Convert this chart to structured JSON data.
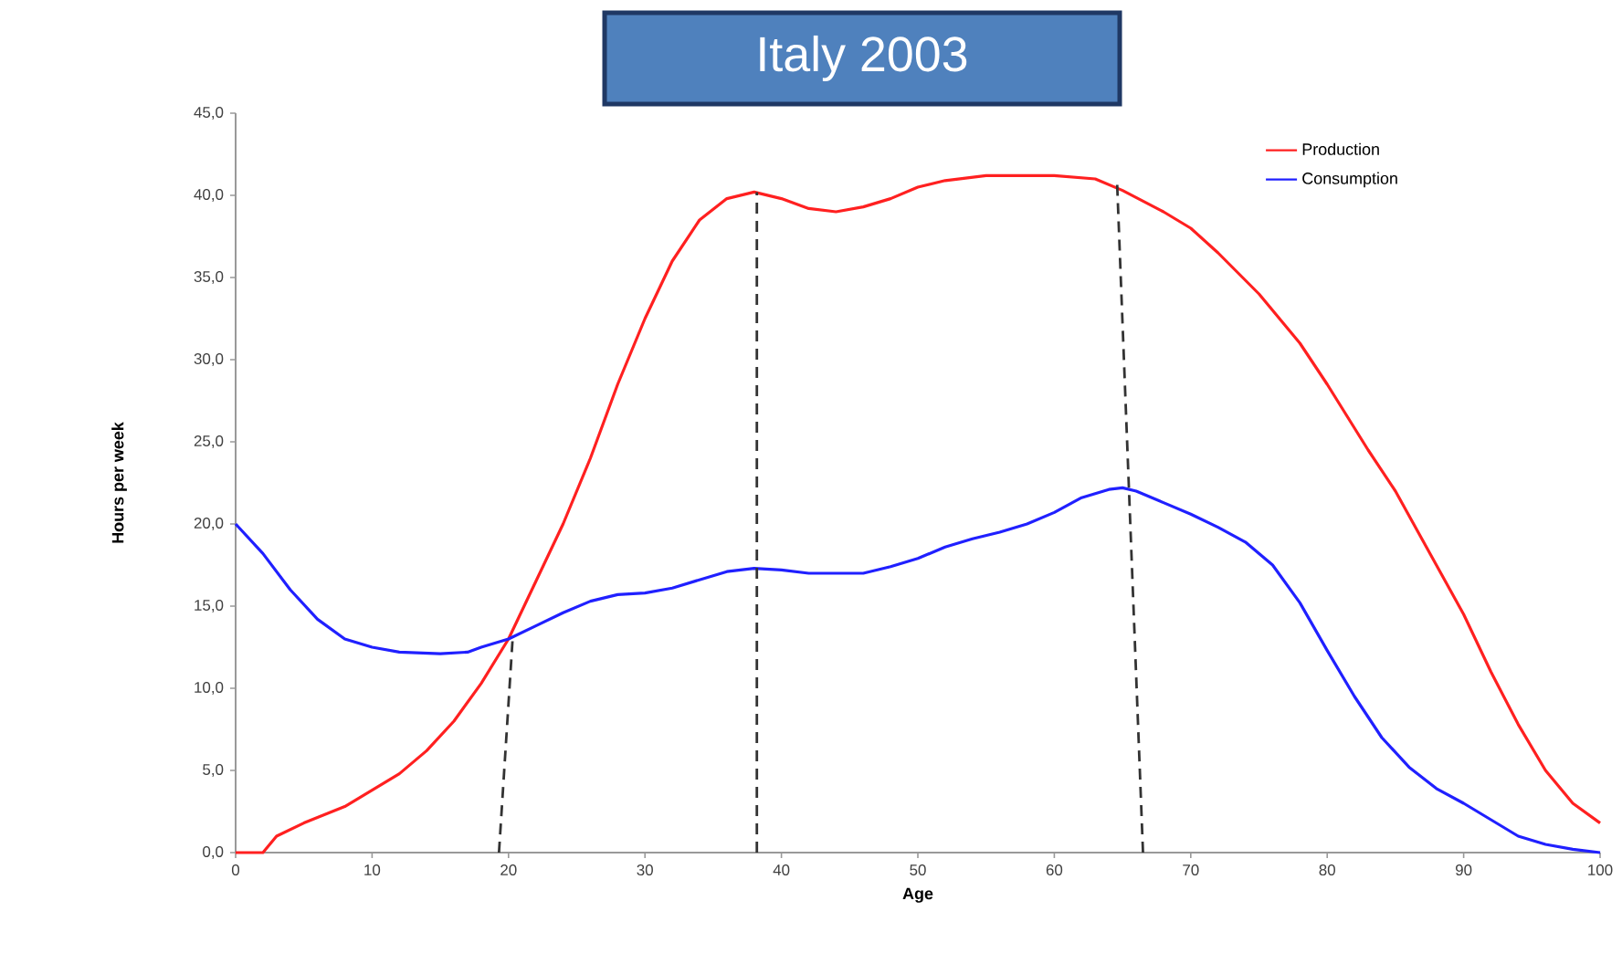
{
  "chart_data": {
    "type": "line",
    "title": "Italy 2003",
    "xlabel": "Age",
    "ylabel": "Hours per week",
    "xlim": [
      0,
      100
    ],
    "ylim": [
      0,
      45
    ],
    "xticks": [
      0,
      10,
      20,
      30,
      40,
      50,
      60,
      70,
      80,
      90,
      100
    ],
    "yticks": [
      {
        "value": 0,
        "label": "0,0"
      },
      {
        "value": 5,
        "label": "5,0"
      },
      {
        "value": 10,
        "label": "10,0"
      },
      {
        "value": 15,
        "label": "15,0"
      },
      {
        "value": 20,
        "label": "20,0"
      },
      {
        "value": 25,
        "label": "25,0"
      },
      {
        "value": 30,
        "label": "30,0"
      },
      {
        "value": 35,
        "label": "35,0"
      },
      {
        "value": 40,
        "label": "40,0"
      },
      {
        "value": 45,
        "label": "45,0"
      }
    ],
    "legend": "top right",
    "series": [
      {
        "name": "Production",
        "color": "#ff2020",
        "x": [
          0,
          2,
          3,
          5,
          8,
          10,
          12,
          14,
          16,
          18,
          20,
          22,
          24,
          26,
          28,
          30,
          32,
          34,
          36,
          38,
          40,
          42,
          44,
          46,
          48,
          50,
          52,
          55,
          60,
          63,
          65,
          68,
          70,
          72,
          75,
          78,
          80,
          83,
          85,
          88,
          90,
          92,
          94,
          96,
          98,
          100
        ],
        "values": [
          0,
          0,
          1.0,
          1.8,
          2.8,
          3.8,
          4.8,
          6.2,
          8,
          10.3,
          13,
          16.5,
          20,
          24,
          28.5,
          32.5,
          36,
          38.5,
          39.8,
          40.2,
          39.8,
          39.2,
          39,
          39.3,
          39.8,
          40.5,
          40.9,
          41.2,
          41.2,
          41,
          40.3,
          39,
          38,
          36.5,
          34,
          31,
          28.5,
          24.5,
          22,
          17.5,
          14.5,
          11,
          7.8,
          5,
          3,
          1.8
        ]
      },
      {
        "name": "Consumption",
        "color": "#2020ff",
        "x": [
          0,
          2,
          4,
          6,
          8,
          10,
          12,
          15,
          17,
          18,
          20,
          22,
          24,
          26,
          28,
          30,
          32,
          34,
          36,
          38,
          40,
          42,
          46,
          48,
          50,
          52,
          54,
          56,
          58,
          60,
          62,
          64,
          65,
          66,
          68,
          70,
          72,
          74,
          76,
          78,
          80,
          82,
          84,
          86,
          88,
          90,
          92,
          94,
          96,
          98,
          100
        ],
        "values": [
          20,
          18.2,
          16,
          14.2,
          13,
          12.5,
          12.2,
          12.1,
          12.2,
          12.5,
          13,
          13.8,
          14.6,
          15.3,
          15.7,
          15.8,
          16.1,
          16.6,
          17.1,
          17.3,
          17.2,
          17,
          17,
          17.4,
          17.9,
          18.6,
          19.1,
          19.5,
          20,
          20.7,
          21.6,
          22.1,
          22.2,
          22,
          21.3,
          20.6,
          19.8,
          18.9,
          17.5,
          15.2,
          12.3,
          9.5,
          7,
          5.2,
          3.9,
          3,
          2,
          1,
          0.5,
          0.2,
          0
        ]
      },
      {
        "color": "#333333",
        "line_style": "dashed",
        "x": [
          19.3,
          20.3
        ],
        "values": [
          0,
          13
        ]
      },
      {
        "color": "#333333",
        "line_style": "dashed",
        "x": [
          38.2,
          38.2
        ],
        "values": [
          0,
          40.2
        ]
      },
      {
        "color": "#333333",
        "line_style": "dashed",
        "x": [
          66.5,
          64.6
        ],
        "values": [
          0,
          40.8
        ]
      }
    ]
  }
}
